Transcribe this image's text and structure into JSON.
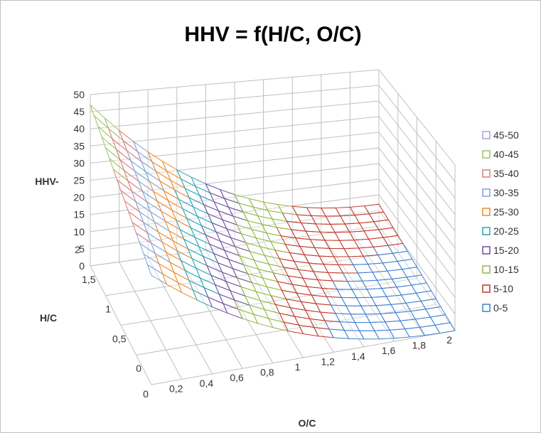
{
  "chart_data": {
    "type": "surface",
    "title": "HHV = f(H/C, O/C)",
    "xlabel": "O/C",
    "ylabel": "H/C",
    "zlabel": "HHV-",
    "x_ticks": [
      "0",
      "0,2",
      "0,4",
      "0,6",
      "0,8",
      "1",
      "1,2",
      "1,4",
      "1,6",
      "1,8",
      "2"
    ],
    "y_ticks": [
      "0",
      "0,5",
      "1",
      "1,5",
      "2"
    ],
    "z_ticks": [
      "0",
      "5",
      "10",
      "15",
      "20",
      "25",
      "30",
      "35",
      "40",
      "45",
      "50"
    ],
    "xlim": [
      0,
      2
    ],
    "ylim": [
      0,
      2
    ],
    "zlim": [
      0,
      50
    ],
    "grid": true,
    "legend_position": "right",
    "legend": [
      {
        "label": "45-50",
        "color": "#a6a6d9"
      },
      {
        "label": "40-45",
        "color": "#9bc364"
      },
      {
        "label": "35-40",
        "color": "#de7a7a"
      },
      {
        "label": "30-35",
        "color": "#7ea4d8"
      },
      {
        "label": "25-30",
        "color": "#ee8a2a"
      },
      {
        "label": "20-25",
        "color": "#2aa5b5"
      },
      {
        "label": "15-20",
        "color": "#6f4f9f"
      },
      {
        "label": "10-15",
        "color": "#92b845"
      },
      {
        "label": "5-10",
        "color": "#c0392b"
      },
      {
        "label": "0-5",
        "color": "#3f7fd1"
      }
    ],
    "surface_note_values": {
      "HHV_at_OC0_HC2": 47,
      "HHV_at_OC0_HC0": 33,
      "HHV_at_OC2_HC2": 7,
      "HHV_at_OC2_HC0": 0
    }
  }
}
